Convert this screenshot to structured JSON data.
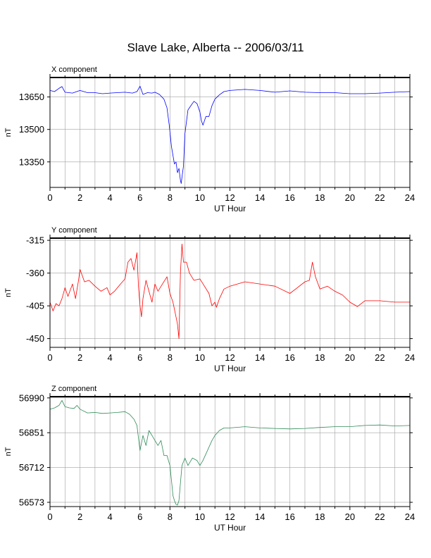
{
  "title": "Slave Lake, Alberta -- 2006/03/11",
  "chart_data": [
    {
      "type": "line",
      "title": "X component",
      "xlabel": "UT Hour",
      "ylabel": "nT",
      "xlim": [
        0,
        24
      ],
      "ylim": [
        13232,
        13740
      ],
      "xticks": [
        0,
        2,
        4,
        6,
        8,
        10,
        12,
        14,
        16,
        18,
        20,
        22,
        24
      ],
      "yticks": [
        13350,
        13500,
        13650
      ],
      "grid": true,
      "color": "#0000ff",
      "series": [
        {
          "x": [
            0,
            0.3,
            0.6,
            0.8,
            1.0,
            1.5,
            2.0,
            2.5,
            3.0,
            3.5,
            4.0,
            4.5,
            5.0,
            5.5,
            5.8,
            6.0,
            6.2,
            6.5,
            6.8,
            7.0,
            7.3,
            7.6,
            7.8,
            7.95,
            8.1,
            8.2,
            8.3,
            8.4,
            8.5,
            8.6,
            8.7,
            8.75,
            8.8,
            8.9,
            9.0,
            9.2,
            9.4,
            9.6,
            9.8,
            10.0,
            10.1,
            10.2,
            10.4,
            10.6,
            10.8,
            11.0,
            11.3,
            11.6,
            12.0,
            13.0,
            14.0,
            15.0,
            16.0,
            17.0,
            18.0,
            19.0,
            20.0,
            21.0,
            22.0,
            23.0,
            24.0
          ],
          "values": [
            13680,
            13675,
            13690,
            13698,
            13672,
            13668,
            13680,
            13670,
            13670,
            13665,
            13668,
            13670,
            13672,
            13668,
            13675,
            13700,
            13662,
            13670,
            13668,
            13672,
            13662,
            13640,
            13600,
            13520,
            13420,
            13380,
            13340,
            13350,
            13300,
            13320,
            13265,
            13250,
            13280,
            13330,
            13480,
            13590,
            13610,
            13630,
            13620,
            13580,
            13540,
            13520,
            13560,
            13560,
            13610,
            13640,
            13660,
            13675,
            13680,
            13685,
            13680,
            13672,
            13678,
            13672,
            13670,
            13670,
            13665,
            13665,
            13668,
            13672,
            13675
          ]
        }
      ]
    },
    {
      "type": "line",
      "title": "Y component",
      "xlabel": "UT Hour",
      "ylabel": "nT",
      "xlim": [
        0,
        24
      ],
      "ylim": [
        -462,
        -312
      ],
      "xticks": [
        0,
        2,
        4,
        6,
        8,
        10,
        12,
        14,
        16,
        18,
        20,
        22,
        24
      ],
      "yticks": [
        -315,
        -360,
        -405,
        -450
      ],
      "grid": true,
      "color": "#ff0000",
      "series": [
        {
          "x": [
            0,
            0.2,
            0.4,
            0.6,
            0.8,
            1.0,
            1.2,
            1.5,
            1.7,
            1.9,
            2.0,
            2.3,
            2.6,
            3.0,
            3.4,
            3.8,
            4.0,
            4.3,
            4.7,
            5.0,
            5.2,
            5.4,
            5.6,
            5.8,
            5.9,
            6.0,
            6.1,
            6.2,
            6.4,
            6.6,
            6.8,
            7.0,
            7.2,
            7.5,
            7.8,
            8.0,
            8.2,
            8.4,
            8.5,
            8.6,
            8.7,
            8.8,
            8.9,
            9.1,
            9.3,
            9.6,
            10.0,
            10.3,
            10.6,
            10.8,
            11.0,
            11.1,
            11.3,
            11.6,
            12.0,
            12.5,
            13.0,
            14.0,
            15.0,
            16.0,
            16.5,
            17.0,
            17.3,
            17.5,
            17.7,
            18.0,
            18.5,
            19.0,
            19.5,
            20.0,
            20.5,
            21.0,
            22.0,
            23.0,
            24.0
          ],
          "values": [
            -400,
            -412,
            -402,
            -405,
            -395,
            -380,
            -392,
            -375,
            -395,
            -370,
            -355,
            -372,
            -370,
            -378,
            -385,
            -380,
            -390,
            -385,
            -375,
            -368,
            -345,
            -340,
            -356,
            -332,
            -378,
            -405,
            -420,
            -395,
            -370,
            -385,
            -400,
            -375,
            -385,
            -375,
            -365,
            -388,
            -400,
            -420,
            -430,
            -450,
            -360,
            -320,
            -345,
            -345,
            -360,
            -370,
            -368,
            -378,
            -388,
            -405,
            -400,
            -407,
            -395,
            -382,
            -378,
            -375,
            -372,
            -375,
            -378,
            -388,
            -380,
            -372,
            -370,
            -345,
            -365,
            -382,
            -378,
            -385,
            -390,
            -400,
            -406,
            -398,
            -398,
            -400,
            -400
          ]
        }
      ]
    },
    {
      "type": "line",
      "title": "Z component",
      "xlabel": "UT Hour",
      "ylabel": "nT",
      "xlim": [
        0,
        24
      ],
      "ylim": [
        56556,
        56995
      ],
      "xticks": [
        0,
        2,
        4,
        6,
        8,
        10,
        12,
        14,
        16,
        18,
        20,
        22,
        24
      ],
      "yticks": [
        56990,
        56851,
        56712,
        56573
      ],
      "grid": true,
      "color": "#2e8b57",
      "series": [
        {
          "x": [
            0,
            0.3,
            0.6,
            0.8,
            1.0,
            1.3,
            1.6,
            1.8,
            2.0,
            2.5,
            3.0,
            3.5,
            4.0,
            4.5,
            5.0,
            5.3,
            5.6,
            5.8,
            5.9,
            6.0,
            6.2,
            6.4,
            6.6,
            6.8,
            7.0,
            7.2,
            7.4,
            7.6,
            7.8,
            8.0,
            8.1,
            8.2,
            8.3,
            8.4,
            8.5,
            8.6,
            8.7,
            8.8,
            9.0,
            9.2,
            9.5,
            9.8,
            10.0,
            10.2,
            10.5,
            10.8,
            11.0,
            11.3,
            11.6,
            12.0,
            13.0,
            14.0,
            15.0,
            16.0,
            17.0,
            18.0,
            19.0,
            20.0,
            21.0,
            22.0,
            23.0,
            24.0
          ],
          "values": [
            56945,
            56950,
            56960,
            56980,
            56955,
            56950,
            56948,
            56960,
            56945,
            56930,
            56932,
            56928,
            56930,
            56932,
            56935,
            56925,
            56905,
            56880,
            56830,
            56780,
            56840,
            56800,
            56860,
            56840,
            56820,
            56800,
            56820,
            56760,
            56760,
            56720,
            56660,
            56600,
            56580,
            56565,
            56562,
            56580,
            56650,
            56720,
            56750,
            56720,
            56750,
            56740,
            56720,
            56740,
            56780,
            56820,
            56840,
            56860,
            56870,
            56870,
            56875,
            56870,
            56868,
            56866,
            56868,
            56872,
            56875,
            56875,
            56880,
            56882,
            56878,
            56880
          ]
        }
      ]
    }
  ]
}
